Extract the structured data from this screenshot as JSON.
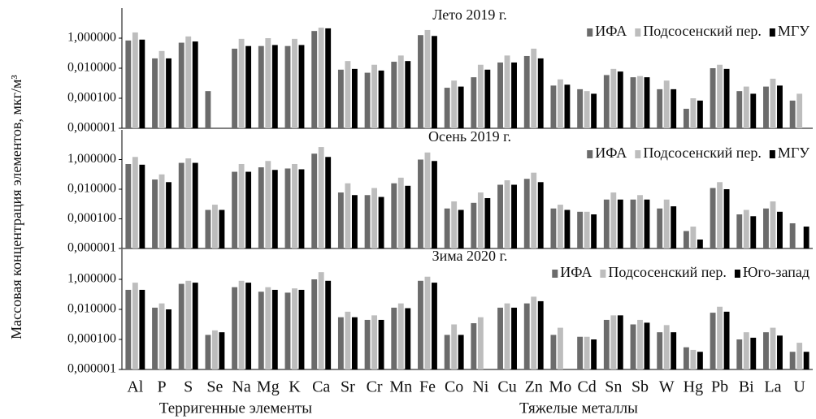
{
  "y_label": "Массовая концентрация элементов, мкг/м³",
  "groups": [
    "Терригенные элементы",
    "Тяжелые металлы"
  ],
  "chart_data": [
    {
      "type": "bar",
      "title": "Лето 2019 г.",
      "log_scale": true,
      "legend": "upper right",
      "ylim": [
        1e-06,
        100
      ],
      "yticks": [
        {
          "value": 1e-06,
          "label": "0,000001"
        },
        {
          "value": 0.0001,
          "label": "0,000100"
        },
        {
          "value": 0.01,
          "label": "0,010000"
        },
        {
          "value": 1,
          "label": "1,000000"
        }
      ],
      "series": [
        {
          "name": "ИФА",
          "color": "#6b6b6b",
          "values": [
            0.7,
            0.045,
            0.5,
            0.0003,
            0.2,
            0.3,
            0.3,
            3,
            0.008,
            0.005,
            0.027,
            1.6,
            0.0005,
            0.0025,
            0.024,
            0.065,
            0.0007,
            0.0004,
            0.0035,
            0.0025,
            0.0004,
            2e-05,
            0.01,
            0.0003,
            0.0006,
            7e-05
          ]
        },
        {
          "name": "Подсосенский пер.",
          "color": "#bdbdbd",
          "values": [
            2.4,
            0.14,
            1.3,
            null,
            0.9,
            1,
            0.9,
            5,
            0.03,
            0.017,
            0.07,
            3.5,
            0.0015,
            0.017,
            0.07,
            0.2,
            0.0018,
            0.0003,
            0.009,
            0.003,
            0.0015,
            0.0001,
            0.017,
            0.0006,
            0.002,
            0.0002
          ]
        },
        {
          "name": "МГУ",
          "color": "#000000",
          "values": [
            0.8,
            0.045,
            0.6,
            null,
            0.3,
            0.35,
            0.35,
            4.5,
            0.009,
            0.007,
            0.03,
            1.4,
            0.0006,
            0.008,
            0.024,
            0.045,
            0.0008,
            0.0002,
            0.006,
            0.0025,
            0.0004,
            7e-05,
            0.009,
            0.0002,
            0.0007,
            null
          ]
        }
      ]
    },
    {
      "type": "bar",
      "title": "Осень 2019 г.",
      "log_scale": true,
      "legend": "upper right",
      "ylim": [
        1e-06,
        100
      ],
      "yticks": [
        {
          "value": 1e-06,
          "label": "0,000001"
        },
        {
          "value": 0.0001,
          "label": "0,000100"
        },
        {
          "value": 0.01,
          "label": "0,010000"
        },
        {
          "value": 1,
          "label": "1,000000"
        }
      ],
      "series": [
        {
          "name": "ИФА",
          "color": "#6b6b6b",
          "values": [
            0.5,
            0.045,
            0.6,
            0.0004,
            0.15,
            0.3,
            0.25,
            2.5,
            0.006,
            0.004,
            0.025,
            1,
            0.0005,
            0.0012,
            0.02,
            0.05,
            0.0005,
            0.0003,
            0.002,
            0.002,
            0.0005,
            1.5e-05,
            0.012,
            0.0002,
            0.0005,
            5e-05
          ]
        },
        {
          "name": "Подсосенский пер.",
          "color": "#bdbdbd",
          "values": [
            1.5,
            0.1,
            1.2,
            0.0009,
            0.5,
            0.8,
            0.5,
            7,
            0.025,
            0.012,
            0.06,
            3,
            0.0015,
            0.006,
            0.04,
            0.13,
            0.0009,
            0.0003,
            0.006,
            0.004,
            0.002,
            3e-05,
            0.03,
            0.0004,
            0.0015,
            null
          ]
        },
        {
          "name": "МГУ",
          "color": "#000000",
          "values": [
            0.45,
            0.03,
            0.6,
            0.0004,
            0.15,
            0.2,
            0.22,
            1.5,
            0.004,
            0.003,
            0.017,
            0.8,
            0.0004,
            0.0025,
            0.02,
            0.03,
            0.0004,
            0.0002,
            0.002,
            0.002,
            0.0007,
            4e-06,
            0.01,
            0.00015,
            0.0003,
            3e-05
          ]
        }
      ]
    },
    {
      "type": "bar",
      "title": "Зима 2020 г.",
      "log_scale": true,
      "legend": "upper right",
      "ylim": [
        1e-06,
        100
      ],
      "yticks": [
        {
          "value": 1e-06,
          "label": "0,000001"
        },
        {
          "value": 0.0001,
          "label": "0,000100"
        },
        {
          "value": 0.01,
          "label": "0,010000"
        },
        {
          "value": 1,
          "label": "1,000000"
        }
      ],
      "categories": [
        "Al",
        "P",
        "S",
        "Se",
        "Na",
        "Mg",
        "K",
        "Ca",
        "Sr",
        "Cr",
        "Mn",
        "Fe",
        "Co",
        "Ni",
        "Cu",
        "Zn",
        "Mo",
        "Cd",
        "Sn",
        "Sb",
        "W",
        "Hg",
        "Pb",
        "Bi",
        "La",
        "U"
      ],
      "series": [
        {
          "name": "ИФА",
          "color": "#6b6b6b",
          "values": [
            0.2,
            0.013,
            0.5,
            0.0002,
            0.3,
            0.15,
            0.13,
            1,
            0.003,
            0.002,
            0.013,
            0.8,
            0.0002,
            0.0012,
            0.013,
            0.025,
            0.0002,
            0.00015,
            0.002,
            0.001,
            0.0003,
            3e-05,
            0.006,
            0.0001,
            0.0003,
            1.5e-05
          ]
        },
        {
          "name": "Подсосенский пер.",
          "color": "#bdbdbd",
          "values": [
            0.6,
            0.025,
            0.8,
            0.0004,
            0.8,
            0.3,
            0.25,
            3,
            0.007,
            0.004,
            0.025,
            1.5,
            0.001,
            0.003,
            0.025,
            0.07,
            0.0006,
            0.00015,
            0.004,
            0.002,
            0.0009,
            2e-05,
            0.015,
            0.0003,
            0.0006,
            6e-05
          ]
        },
        {
          "name": "Юго-запад",
          "color": "#000000",
          "values": [
            0.2,
            0.01,
            0.6,
            0.0003,
            0.6,
            0.2,
            0.2,
            0.8,
            0.003,
            0.002,
            0.012,
            0.6,
            0.0002,
            null,
            0.013,
            0.035,
            null,
            0.0001,
            0.004,
            0.0013,
            0.0003,
            1.5e-05,
            0.007,
            0.00013,
            0.00018,
            1.5e-05
          ]
        }
      ]
    }
  ]
}
